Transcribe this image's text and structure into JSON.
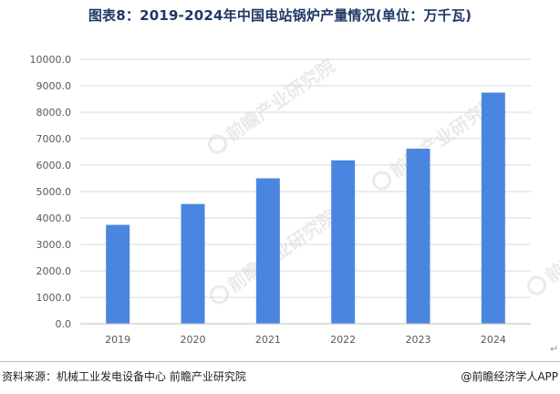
{
  "chart_data": {
    "type": "bar",
    "title": "图表8：2019-2024年中国电站锅炉产量情况(单位：万千瓦)",
    "categories": [
      "2019",
      "2020",
      "2021",
      "2022",
      "2023",
      "2024"
    ],
    "series": [
      {
        "values": [
          3740,
          4530,
          5500,
          6180,
          6620,
          8740
        ],
        "color": "#4a86e0"
      }
    ],
    "ylim": [
      0,
      10000
    ],
    "yticks": [
      0,
      1000,
      2000,
      3000,
      4000,
      5000,
      6000,
      7000,
      8000,
      9000,
      10000
    ],
    "ytick_labels": [
      "0.0",
      "1000.0",
      "2000.0",
      "3000.0",
      "4000.0",
      "5000.0",
      "6000.0",
      "7000.0",
      "8000.0",
      "9000.0",
      "10000.0"
    ],
    "xlabel": "",
    "ylabel": "",
    "grid": true,
    "legend": "none"
  },
  "footer": {
    "source": "资料来源：机械工业发电设备中心 前瞻产业研究院",
    "credit": "@前瞻经济学人APP"
  },
  "watermark": {
    "text": "前瞻产业研究院",
    "color": "#d9d9d9"
  },
  "colors": {
    "bar": "#4a86e0",
    "grid": "#d9d9d9",
    "axis": "#bfbfbf",
    "title": "#1f3864"
  }
}
